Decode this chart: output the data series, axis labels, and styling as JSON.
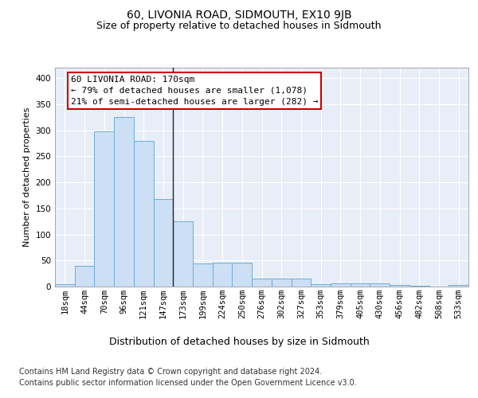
{
  "title": "60, LIVONIA ROAD, SIDMOUTH, EX10 9JB",
  "subtitle": "Size of property relative to detached houses in Sidmouth",
  "xlabel": "Distribution of detached houses by size in Sidmouth",
  "ylabel": "Number of detached properties",
  "categories": [
    "18sqm",
    "44sqm",
    "70sqm",
    "96sqm",
    "121sqm",
    "147sqm",
    "173sqm",
    "199sqm",
    "224sqm",
    "250sqm",
    "276sqm",
    "302sqm",
    "327sqm",
    "353sqm",
    "379sqm",
    "405sqm",
    "430sqm",
    "456sqm",
    "482sqm",
    "508sqm",
    "533sqm"
  ],
  "values": [
    4,
    39,
    298,
    326,
    279,
    168,
    125,
    45,
    46,
    46,
    15,
    15,
    15,
    5,
    6,
    6,
    6,
    3,
    1,
    0,
    3
  ],
  "bar_color": "#ccdff5",
  "bar_edge_color": "#6aaed6",
  "annotation_line1": "60 LIVONIA ROAD: 170sqm",
  "annotation_line2": "← 79% of detached houses are smaller (1,078)",
  "annotation_line3": "21% of semi-detached houses are larger (282) →",
  "annotation_box_facecolor": "#ffffff",
  "annotation_box_edgecolor": "#cc0000",
  "vline_pos": 5.5,
  "ylim": [
    0,
    420
  ],
  "yticks": [
    0,
    50,
    100,
    150,
    200,
    250,
    300,
    350,
    400
  ],
  "plot_bg_color": "#e8eef8",
  "fig_bg_color": "#ffffff",
  "grid_color": "#ffffff",
  "title_fontsize": 10,
  "subtitle_fontsize": 9,
  "xlabel_fontsize": 9,
  "ylabel_fontsize": 8,
  "tick_fontsize": 7.5,
  "annotation_fontsize": 8,
  "footer_fontsize": 7,
  "footer_line1": "Contains HM Land Registry data © Crown copyright and database right 2024.",
  "footer_line2": "Contains public sector information licensed under the Open Government Licence v3.0."
}
